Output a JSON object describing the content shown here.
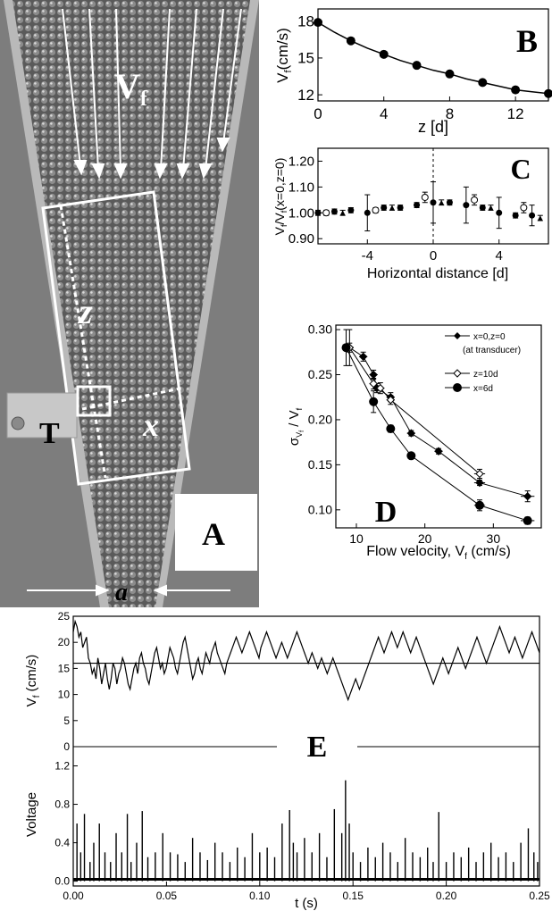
{
  "photo": {
    "panel_letter": "A",
    "velocity_label": "V",
    "velocity_subscript": "f",
    "transducer_label": "T",
    "z_label": "z",
    "x_label": "x",
    "width_label": "a",
    "colors": {
      "background": "#7d7d7d",
      "wall": "#b9b9b9",
      "box": "#ffffff"
    }
  },
  "chart_data": [
    {
      "id": "B",
      "type": "line",
      "panel_letter": "B",
      "xlabel": "z [d]",
      "ylabel_main": "V",
      "ylabel_sub": "f",
      "ylabel_tail": "(cm/s)",
      "xlim": [
        0,
        14
      ],
      "ylim": [
        11.5,
        19
      ],
      "xticks": [
        0,
        4,
        8,
        12
      ],
      "yticks": [
        12,
        15,
        18
      ],
      "x": [
        0,
        2,
        4,
        6,
        8,
        10,
        12,
        14
      ],
      "y": [
        17.9,
        16.4,
        15.3,
        14.4,
        13.7,
        13.0,
        12.4,
        12.1
      ],
      "fit": [
        [
          0,
          17.9
        ],
        [
          1,
          17.1
        ],
        [
          2,
          16.4
        ],
        [
          3,
          15.8
        ],
        [
          4,
          15.3
        ],
        [
          5,
          14.8
        ],
        [
          6,
          14.4
        ],
        [
          7,
          14.0
        ],
        [
          8,
          13.7
        ],
        [
          9,
          13.3
        ],
        [
          10,
          13.0
        ],
        [
          11,
          12.7
        ],
        [
          12,
          12.4
        ],
        [
          13,
          12.25
        ],
        [
          14,
          12.1
        ]
      ]
    },
    {
      "id": "C",
      "type": "scatter",
      "panel_letter": "C",
      "xlabel": "Horizontal distance [d]",
      "ylabel": "V_f/V_f(x=0,z=0)",
      "ylabel_parts": [
        "V",
        "f",
        "/V",
        "f",
        "(x=0,z=0)"
      ],
      "xlim": [
        -7,
        7
      ],
      "ylim": [
        0.88,
        1.25
      ],
      "xticks": [
        -4,
        0,
        4
      ],
      "yticks": [
        0.9,
        1.0,
        1.1,
        1.2
      ],
      "ytick_labels": [
        "0.90",
        "1.00",
        "1.10",
        "1.20"
      ],
      "vertical_dashed_at": 0,
      "series": [
        {
          "marker": "filled-circle",
          "x": [
            -7,
            -6,
            -5,
            -4,
            -3,
            -2,
            -1,
            0,
            1,
            2,
            3,
            4,
            5,
            6
          ],
          "y": [
            1.0,
            1.005,
            1.01,
            1.0,
            1.02,
            1.02,
            1.03,
            1.04,
            1.04,
            1.03,
            1.02,
            1.0,
            0.99,
            0.99
          ],
          "err": [
            0.01,
            0.01,
            0.01,
            0.07,
            0.01,
            0.01,
            0.01,
            0.08,
            0.01,
            0.07,
            0.01,
            0.06,
            0.01,
            0.04
          ]
        },
        {
          "marker": "open-circle",
          "x": [
            -6.5,
            -3.5,
            -0.5,
            2.5,
            5.5
          ],
          "y": [
            1.0,
            1.01,
            1.06,
            1.05,
            1.02
          ],
          "err": [
            0.01,
            0.01,
            0.02,
            0.02,
            0.02
          ]
        },
        {
          "marker": "filled-triangle",
          "x": [
            -5.5,
            -2.5,
            0.5,
            3.5,
            6.5
          ],
          "y": [
            1.0,
            1.02,
            1.04,
            1.02,
            0.98
          ],
          "err": [
            0.01,
            0.01,
            0.01,
            0.01,
            0.01
          ]
        }
      ]
    },
    {
      "id": "D",
      "type": "line",
      "panel_letter": "D",
      "xlabel": "Flow velocity, V_f (cm/s)",
      "xlabel_parts": [
        "Flow velocity, V",
        "f",
        " (cm/s)"
      ],
      "ylabel_parts": [
        "σ",
        "V",
        "f",
        " / V",
        "f"
      ],
      "xlim": [
        7,
        37
      ],
      "ylim": [
        0.08,
        0.305
      ],
      "xticks": [
        10,
        20,
        30
      ],
      "yticks": [
        0.1,
        0.15,
        0.2,
        0.25,
        0.3
      ],
      "ytick_labels": [
        "0.10",
        "0.15",
        "0.20",
        "0.25",
        "0.30"
      ],
      "legend_position": "top-right",
      "series": [
        {
          "name": "x=0,z=0",
          "name_note": "(at transducer)",
          "marker": "filled-diamond",
          "x": [
            9,
            11,
            12.5,
            13,
            15,
            18,
            22,
            28,
            35
          ],
          "y": [
            0.28,
            0.27,
            0.25,
            0.235,
            0.225,
            0.185,
            0.165,
            0.13,
            0.115
          ],
          "xerr": [
            0.6,
            0.6,
            0.6,
            0.6,
            0.6,
            0.6,
            0.6,
            0.8,
            1.0
          ],
          "yerr": [
            0.005,
            0.005,
            0.005,
            0.005,
            0.005,
            0.003,
            0.003,
            0.003,
            0.006
          ]
        },
        {
          "name": "z=10d",
          "marker": "open-diamond",
          "x": [
            9,
            12.5,
            13.5,
            15,
            28
          ],
          "y": [
            0.28,
            0.24,
            0.235,
            0.222,
            0.14
          ],
          "xerr": [
            0.6,
            0.6,
            0.6,
            0.6,
            0.8
          ],
          "yerr": [
            0.02,
            0.006,
            0.006,
            0.005,
            0.005
          ]
        },
        {
          "name": "x=6d",
          "marker": "filled-circle",
          "x": [
            8.5,
            12.5,
            15,
            18,
            28,
            35
          ],
          "y": [
            0.28,
            0.22,
            0.19,
            0.16,
            0.105,
            0.088
          ],
          "xerr": [
            0.6,
            0.6,
            0.6,
            0.6,
            0.8,
            1.0
          ],
          "yerr": [
            0.02,
            0.012,
            0.004,
            0.003,
            0.006,
            0.004
          ]
        }
      ]
    },
    {
      "id": "E-top",
      "type": "line",
      "panel_letter": "E",
      "ylabel_parts": [
        "V",
        "f",
        " (cm/s)"
      ],
      "xlim": [
        0,
        0.25
      ],
      "ylim": [
        0,
        25
      ],
      "yticks": [
        0,
        5,
        10,
        15,
        20,
        25
      ],
      "mean_line_y": 16,
      "x_step": 0.001,
      "y": [
        22,
        24,
        23,
        21,
        22,
        19,
        20,
        21,
        17,
        16,
        14,
        15,
        13,
        17,
        15,
        12,
        14,
        16,
        13,
        11,
        13,
        16,
        15,
        12,
        14,
        15,
        17,
        16,
        14,
        12,
        11,
        13,
        15,
        16,
        14,
        17,
        18,
        16,
        15,
        13,
        12,
        14,
        16,
        18,
        19,
        17,
        15,
        16,
        14,
        15,
        17,
        19,
        18,
        17,
        15,
        14,
        16,
        18,
        20,
        21,
        19,
        17,
        15,
        13,
        14,
        16,
        17,
        15,
        14,
        16,
        18,
        17,
        16,
        18,
        19,
        20,
        18,
        17,
        16,
        15,
        14,
        16,
        17,
        18,
        19,
        20,
        21,
        20,
        19,
        18,
        19,
        20,
        21,
        22,
        21,
        20,
        19,
        18,
        17,
        19,
        20,
        21,
        22,
        21,
        20,
        19,
        18,
        17,
        18,
        19,
        20,
        19,
        18,
        17,
        18,
        19,
        20,
        21,
        22,
        21,
        20,
        19,
        18,
        17,
        16,
        17,
        18,
        17,
        16,
        15,
        16,
        17,
        16,
        15,
        14,
        15,
        16,
        17,
        16,
        15,
        14,
        13,
        12,
        11,
        10,
        9,
        10,
        11,
        12,
        13,
        12,
        11,
        12,
        13,
        14,
        15,
        16,
        17,
        18,
        19,
        20,
        21,
        20,
        19,
        18,
        19,
        20,
        21,
        22,
        21,
        20,
        19,
        20,
        21,
        22,
        21,
        20,
        19,
        18,
        19,
        20,
        21,
        20,
        19,
        18,
        17,
        16,
        15,
        14,
        13,
        12,
        13,
        14,
        15,
        16,
        17,
        16,
        15,
        14,
        15,
        16,
        17,
        18,
        19,
        18,
        17,
        16,
        15,
        16,
        17,
        18,
        19,
        20,
        21,
        20,
        19,
        18,
        17,
        16,
        17,
        18,
        19,
        20,
        21,
        22,
        23,
        22,
        21,
        20,
        19,
        18,
        19,
        20,
        21,
        20,
        19,
        18,
        17,
        18,
        19,
        20,
        21,
        22,
        21,
        20,
        19,
        18
      ]
    },
    {
      "id": "E-bottom",
      "type": "line",
      "xlabel": "t (s)",
      "ylabel": "Voltage",
      "xlim": [
        0,
        0.25
      ],
      "ylim": [
        -0.05,
        1.4
      ],
      "xticks": [
        0,
        0.05,
        0.1,
        0.15,
        0.2,
        0.25
      ],
      "xtick_labels": [
        "0.00",
        "0.05",
        "0.10",
        "0.15",
        "0.20",
        "0.25"
      ],
      "yticks": [
        0.0,
        0.4,
        0.8,
        1.2
      ],
      "ytick_labels": [
        "0.0",
        "0.4",
        "0.8",
        "1.2"
      ],
      "spikes": [
        [
          0.002,
          0.6
        ],
        [
          0.004,
          0.3
        ],
        [
          0.006,
          0.7
        ],
        [
          0.009,
          0.2
        ],
        [
          0.011,
          0.4
        ],
        [
          0.014,
          0.6
        ],
        [
          0.017,
          0.3
        ],
        [
          0.02,
          0.2
        ],
        [
          0.023,
          0.5
        ],
        [
          0.026,
          0.3
        ],
        [
          0.029,
          0.7
        ],
        [
          0.031,
          0.2
        ],
        [
          0.034,
          0.4
        ],
        [
          0.037,
          0.73
        ],
        [
          0.04,
          0.25
        ],
        [
          0.044,
          0.3
        ],
        [
          0.048,
          0.5
        ],
        [
          0.052,
          0.3
        ],
        [
          0.056,
          0.28
        ],
        [
          0.06,
          0.2
        ],
        [
          0.064,
          0.45
        ],
        [
          0.068,
          0.3
        ],
        [
          0.072,
          0.22
        ],
        [
          0.076,
          0.4
        ],
        [
          0.08,
          0.3
        ],
        [
          0.084,
          0.2
        ],
        [
          0.088,
          0.35
        ],
        [
          0.092,
          0.25
        ],
        [
          0.096,
          0.5
        ],
        [
          0.1,
          0.3
        ],
        [
          0.104,
          0.35
        ],
        [
          0.108,
          0.25
        ],
        [
          0.112,
          0.6
        ],
        [
          0.116,
          0.74
        ],
        [
          0.118,
          0.4
        ],
        [
          0.12,
          0.3
        ],
        [
          0.124,
          0.45
        ],
        [
          0.128,
          0.3
        ],
        [
          0.132,
          0.5
        ],
        [
          0.136,
          0.25
        ],
        [
          0.14,
          0.75
        ],
        [
          0.144,
          0.5
        ],
        [
          0.146,
          1.05
        ],
        [
          0.148,
          0.6
        ],
        [
          0.15,
          0.3
        ],
        [
          0.154,
          0.2
        ],
        [
          0.158,
          0.35
        ],
        [
          0.162,
          0.25
        ],
        [
          0.166,
          0.4
        ],
        [
          0.17,
          0.3
        ],
        [
          0.174,
          0.2
        ],
        [
          0.178,
          0.45
        ],
        [
          0.182,
          0.3
        ],
        [
          0.186,
          0.25
        ],
        [
          0.19,
          0.35
        ],
        [
          0.193,
          0.2
        ],
        [
          0.196,
          0.72
        ],
        [
          0.2,
          0.2
        ],
        [
          0.204,
          0.3
        ],
        [
          0.208,
          0.25
        ],
        [
          0.212,
          0.35
        ],
        [
          0.216,
          0.2
        ],
        [
          0.22,
          0.3
        ],
        [
          0.224,
          0.4
        ],
        [
          0.228,
          0.25
        ],
        [
          0.232,
          0.3
        ],
        [
          0.236,
          0.2
        ],
        [
          0.24,
          0.4
        ],
        [
          0.244,
          0.55
        ],
        [
          0.247,
          0.3
        ],
        [
          0.249,
          0.2
        ]
      ]
    }
  ]
}
